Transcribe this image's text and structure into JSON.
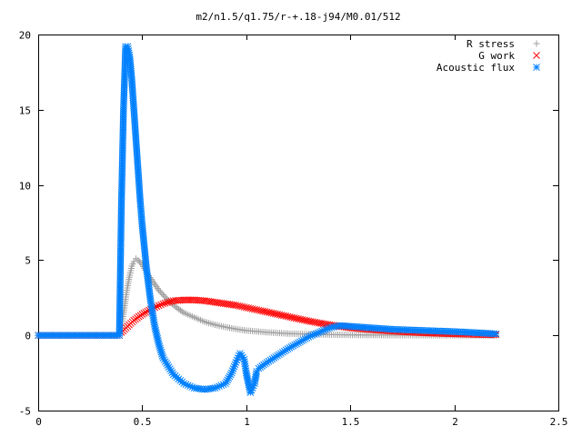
{
  "chart_data": {
    "type": "scatter",
    "title": "m2/n1.5/q1.75/r-+.18-j94/M0.01/512",
    "xlabel": "",
    "ylabel": "",
    "xlim": [
      0,
      2.5
    ],
    "ylim": [
      -5,
      20
    ],
    "x_ticks": [
      "0",
      "0.5",
      "1",
      "1.5",
      "2",
      "2.5"
    ],
    "y_ticks": [
      "-5",
      "0",
      "5",
      "10",
      "15",
      "20"
    ],
    "x_tick_values": [
      0,
      0.5,
      1,
      1.5,
      2,
      2.5
    ],
    "y_tick_values": [
      -5,
      0,
      5,
      10,
      15,
      20
    ],
    "grid": false,
    "legend_position": "top-right",
    "series": [
      {
        "name": "R stress",
        "marker": "plus",
        "color": "#a0a0a0",
        "x": [
          0,
          0.1,
          0.2,
          0.3,
          0.39,
          0.4,
          0.41,
          0.42,
          0.43,
          0.44,
          0.45,
          0.46,
          0.47,
          0.48,
          0.5,
          0.52,
          0.55,
          0.58,
          0.62,
          0.66,
          0.7,
          0.75,
          0.8,
          0.85,
          0.9,
          0.95,
          1.0,
          1.1,
          1.2,
          1.3,
          1.4,
          1.5,
          1.6,
          1.8,
          2.0,
          2.2
        ],
        "y": [
          0,
          0,
          0,
          0,
          0,
          0.5,
          1.4,
          2.4,
          3.3,
          4.0,
          4.6,
          4.9,
          5.1,
          5.0,
          4.7,
          4.2,
          3.6,
          3.0,
          2.4,
          1.9,
          1.5,
          1.2,
          0.9,
          0.7,
          0.55,
          0.42,
          0.32,
          0.2,
          0.12,
          0.08,
          0.05,
          0.03,
          0.02,
          0.01,
          0.0,
          0.0
        ]
      },
      {
        "name": "G work",
        "marker": "cross",
        "color": "#ff0000",
        "x": [
          0,
          0.1,
          0.2,
          0.3,
          0.39,
          0.4,
          0.43,
          0.46,
          0.5,
          0.55,
          0.6,
          0.65,
          0.7,
          0.75,
          0.8,
          0.85,
          0.9,
          0.95,
          1.0,
          1.05,
          1.1,
          1.15,
          1.2,
          1.25,
          1.3,
          1.35,
          1.4,
          1.45,
          1.5,
          1.6,
          1.7,
          1.8,
          1.9,
          2.0,
          2.1,
          2.2
        ],
        "y": [
          0,
          0,
          0,
          0,
          0,
          0.2,
          0.6,
          1.0,
          1.4,
          1.8,
          2.1,
          2.3,
          2.35,
          2.35,
          2.3,
          2.2,
          2.1,
          2.0,
          1.85,
          1.7,
          1.55,
          1.4,
          1.25,
          1.1,
          0.95,
          0.82,
          0.7,
          0.6,
          0.5,
          0.38,
          0.28,
          0.2,
          0.14,
          0.1,
          0.06,
          0.04
        ]
      },
      {
        "name": "Acoustic flux",
        "marker": "star",
        "color": "#0080ff",
        "x": [
          0,
          0.1,
          0.2,
          0.3,
          0.39,
          0.4,
          0.41,
          0.42,
          0.43,
          0.44,
          0.45,
          0.46,
          0.47,
          0.48,
          0.49,
          0.5,
          0.52,
          0.54,
          0.56,
          0.58,
          0.6,
          0.65,
          0.7,
          0.75,
          0.8,
          0.85,
          0.9,
          0.93,
          0.95,
          0.97,
          0.99,
          1.0,
          1.02,
          1.04,
          1.05,
          1.06,
          1.1,
          1.2,
          1.3,
          1.4,
          1.45,
          1.5,
          1.6,
          1.7,
          1.8,
          1.9,
          2.0,
          2.1,
          2.2
        ],
        "y": [
          0,
          0,
          0,
          0,
          0,
          8.7,
          15.0,
          19.2,
          19.2,
          18.5,
          17.0,
          15.0,
          13.0,
          11.0,
          9.0,
          7.3,
          4.5,
          2.3,
          0.6,
          -0.6,
          -1.5,
          -2.6,
          -3.2,
          -3.5,
          -3.6,
          -3.5,
          -3.2,
          -2.5,
          -1.8,
          -1.2,
          -1.6,
          -2.5,
          -3.8,
          -3.2,
          -2.4,
          -2.2,
          -1.8,
          -0.9,
          -0.1,
          0.5,
          0.65,
          0.6,
          0.5,
          0.4,
          0.35,
          0.3,
          0.25,
          0.18,
          0.1
        ]
      }
    ]
  }
}
